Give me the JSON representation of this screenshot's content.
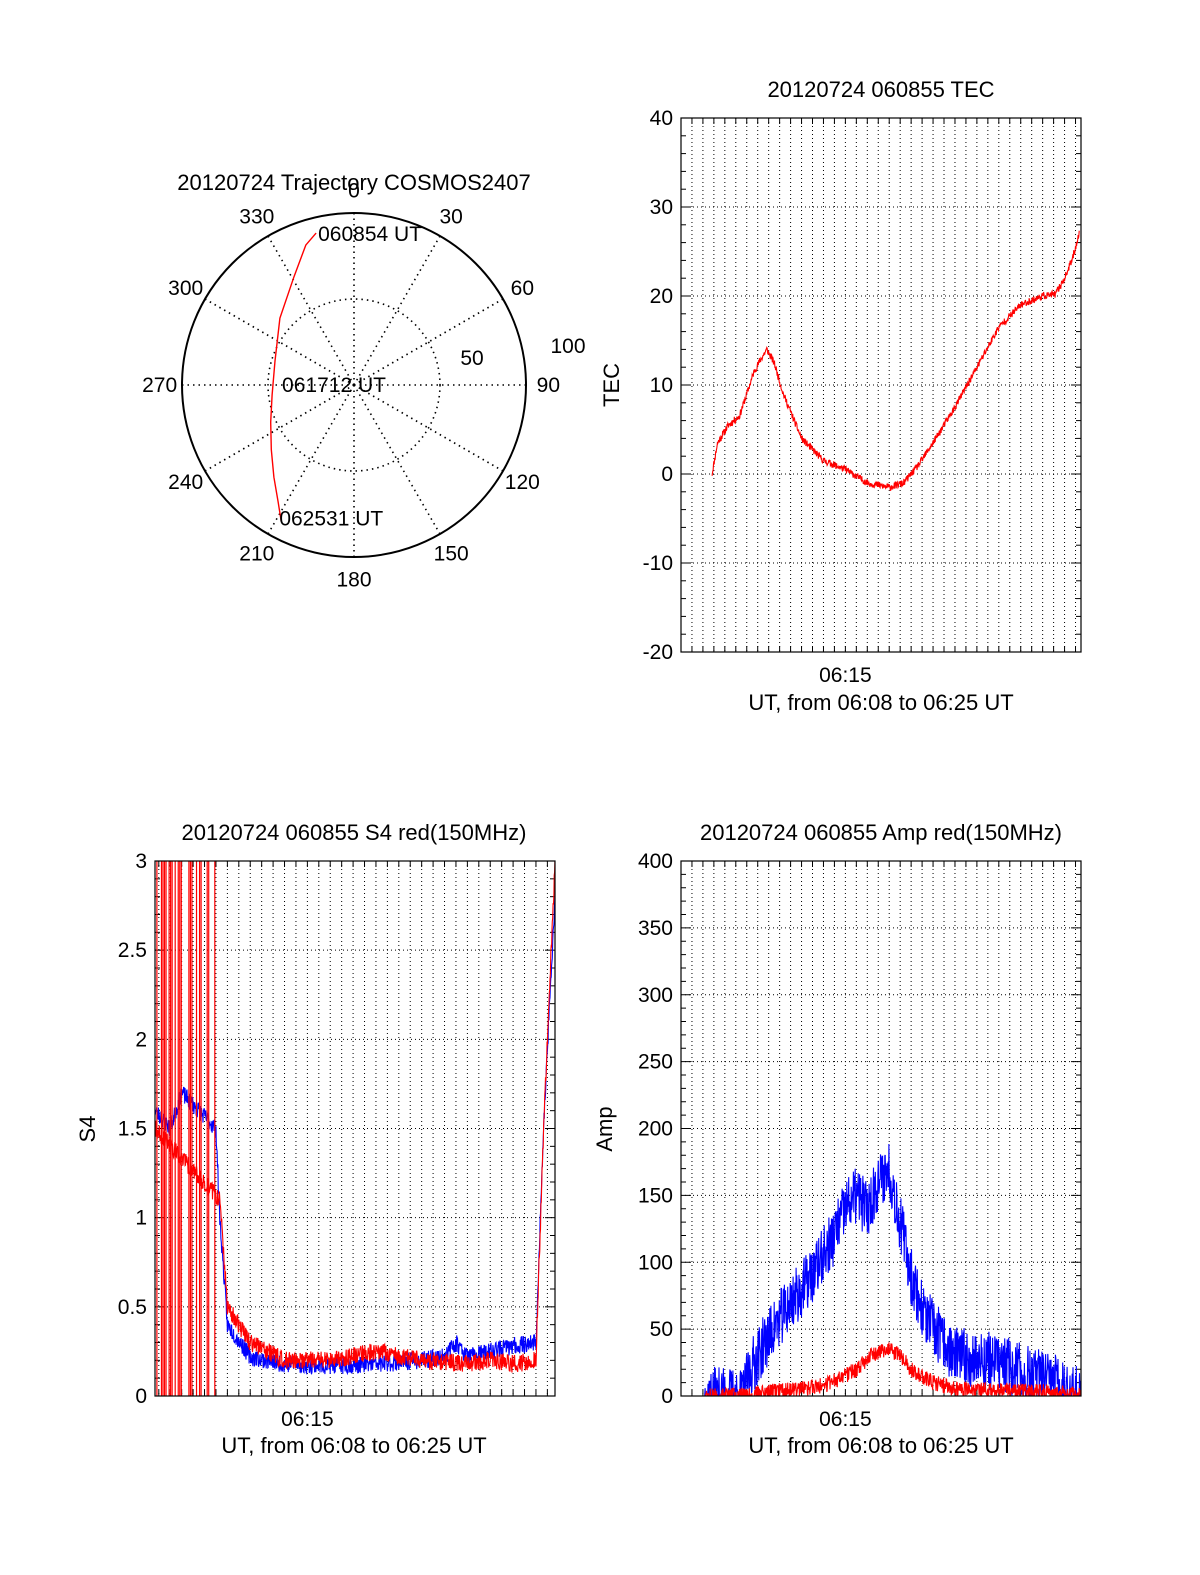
{
  "colors": {
    "red": "#ff0000",
    "blue": "#0000ff",
    "axis": "#000000",
    "grid": "#000000"
  },
  "chart_data": [
    {
      "id": "trajectory",
      "type": "polar",
      "title": "20120724 Trajectory COSMOS2407",
      "angle_labels": [
        "0",
        "30",
        "60",
        "90",
        "120",
        "150",
        "180",
        "210",
        "240",
        "270",
        "300",
        "330"
      ],
      "radial_labels": [
        "50",
        "100"
      ],
      "rlim": [
        0,
        100
      ],
      "grid": true,
      "series": [
        {
          "color": "#ff0000",
          "points": [
            [
              346,
              91
            ],
            [
              341,
              86
            ],
            [
              331,
              72
            ],
            [
              312,
              58
            ],
            [
              287,
              48
            ],
            [
              263,
              48
            ],
            [
              246,
              53
            ],
            [
              232,
              61
            ],
            [
              221,
              71
            ],
            [
              213,
              81
            ],
            [
              208,
              90
            ]
          ]
        }
      ],
      "annotations": [
        {
          "text": "060854 UT",
          "azimuth": 346,
          "radius": 91
        },
        {
          "text": "061712 UT",
          "azimuth": 270,
          "radius": 0
        },
        {
          "text": "062531 UT",
          "azimuth": 208,
          "radius": 90
        }
      ]
    },
    {
      "id": "tec",
      "type": "line",
      "title": "20120724 060855 TEC",
      "xlabel": "UT, from 06:08 to 06:25 UT",
      "ylabel": "TEC",
      "xlim": [
        "06:07:30",
        "06:25:45"
      ],
      "ylim": [
        -20,
        40
      ],
      "yticks": [
        "40",
        "30",
        "20",
        "10",
        "0",
        "-10",
        "-20"
      ],
      "xticks": [
        {
          "time": "06:15:00",
          "label": "06:15"
        }
      ],
      "grid": true,
      "series": [
        {
          "color": "#ff0000",
          "noise": 0.4,
          "x": [
            "06:08:55",
            "06:09:10",
            "06:09:40",
            "06:10:10",
            "06:10:30",
            "06:10:50",
            "06:11:10",
            "06:11:25",
            "06:11:45",
            "06:12:10",
            "06:13:00",
            "06:14:00",
            "06:15:00",
            "06:16:00",
            "06:17:00",
            "06:17:40",
            "06:18:20",
            "06:19:00",
            "06:20:00",
            "06:21:00",
            "06:22:00",
            "06:23:00",
            "06:24:00",
            "06:24:35",
            "06:25:00",
            "06:25:20",
            "06:25:40"
          ],
          "y": [
            0,
            3.5,
            5.5,
            6.5,
            9,
            11.5,
            13,
            14,
            12.5,
            9,
            4,
            1.5,
            0.5,
            -1,
            -1.5,
            -1,
            1,
            3.5,
            7.5,
            12,
            16.5,
            19,
            20,
            20.2,
            22,
            24,
            27
          ]
        }
      ]
    },
    {
      "id": "s4",
      "type": "line",
      "title": "20120724 060855 S4 red(150MHz)",
      "xlabel": "UT, from 06:08 to 06:25 UT",
      "ylabel": "S4",
      "xlim": [
        "06:08:20",
        "06:25:50"
      ],
      "ylim": [
        0,
        3
      ],
      "yticks": [
        "3",
        "2.5",
        "2",
        "1.5",
        "1",
        "0.5",
        "0"
      ],
      "xticks": [
        {
          "time": "06:15:00",
          "label": "06:15"
        }
      ],
      "grid": true,
      "series": [
        {
          "color": "#0000ff",
          "noise": 0.05,
          "x": [
            "06:08:20",
            "06:09:00",
            "06:09:30",
            "06:11:00",
            "06:11:10",
            "06:11:30",
            "06:12:30",
            "06:14:00",
            "06:16:00",
            "06:18:00",
            "06:20:00",
            "06:21:00",
            "06:21:30",
            "06:22:00",
            "06:23:00",
            "06:24:00",
            "06:25:00",
            "06:25:20",
            "06:25:50"
          ],
          "y": [
            1.6,
            1.5,
            1.7,
            1.5,
            1.0,
            0.4,
            0.22,
            0.18,
            0.17,
            0.18,
            0.2,
            0.22,
            0.3,
            0.22,
            0.25,
            0.28,
            0.3,
            1.5,
            2.8
          ]
        },
        {
          "color": "#ff0000",
          "noise": 0.05,
          "x": [
            "06:08:20",
            "06:11:10",
            "06:11:30",
            "06:12:30",
            "06:14:00",
            "06:16:00",
            "06:18:00",
            "06:20:00",
            "06:22:00",
            "06:23:00",
            "06:24:00",
            "06:25:00",
            "06:25:20",
            "06:25:50"
          ],
          "y": [
            1.5,
            1.1,
            0.5,
            0.3,
            0.2,
            0.2,
            0.25,
            0.2,
            0.18,
            0.2,
            0.18,
            0.2,
            1.5,
            3.0
          ]
        }
      ]
    },
    {
      "id": "amp",
      "type": "line",
      "title": "20120724 060855 Amp red(150MHz)",
      "xlabel": "UT, from 06:08 to 06:25 UT",
      "ylabel": "Amp",
      "xlim": [
        "06:07:30",
        "06:25:45"
      ],
      "ylim": [
        0,
        400
      ],
      "yticks": [
        "400",
        "350",
        "300",
        "250",
        "200",
        "150",
        "100",
        "50",
        "0"
      ],
      "xticks": [
        {
          "time": "06:15:00",
          "label": "06:15"
        }
      ],
      "grid": true,
      "series": [
        {
          "color": "#0000ff",
          "noise": 22,
          "x": [
            "06:08:35",
            "06:10:20",
            "06:10:40",
            "06:11:30",
            "06:12:30",
            "06:13:30",
            "06:14:30",
            "06:15:00",
            "06:15:30",
            "06:16:00",
            "06:16:30",
            "06:17:00",
            "06:17:30",
            "06:18:00",
            "06:18:30",
            "06:19:00",
            "06:19:30",
            "06:20:00",
            "06:21:00",
            "06:22:00",
            "06:23:00",
            "06:24:00",
            "06:24:40",
            "06:25:00",
            "06:25:45"
          ],
          "y": [
            0,
            0,
            20,
            45,
            70,
            90,
            120,
            140,
            150,
            140,
            160,
            170,
            130,
            90,
            65,
            50,
            40,
            30,
            28,
            25,
            18,
            12,
            10,
            2,
            0
          ]
        },
        {
          "color": "#ff0000",
          "noise": 6,
          "x": [
            "06:08:35",
            "06:10:30",
            "06:11:30",
            "06:13:00",
            "06:14:00",
            "06:15:00",
            "06:15:30",
            "06:16:00",
            "06:16:30",
            "06:17:00",
            "06:17:30",
            "06:18:00",
            "06:19:00",
            "06:20:00",
            "06:22:00",
            "06:24:00",
            "06:25:00",
            "06:25:45"
          ],
          "y": [
            0,
            0,
            3,
            5,
            8,
            15,
            20,
            28,
            32,
            35,
            30,
            20,
            10,
            5,
            4,
            3,
            2,
            0
          ]
        }
      ]
    }
  ]
}
